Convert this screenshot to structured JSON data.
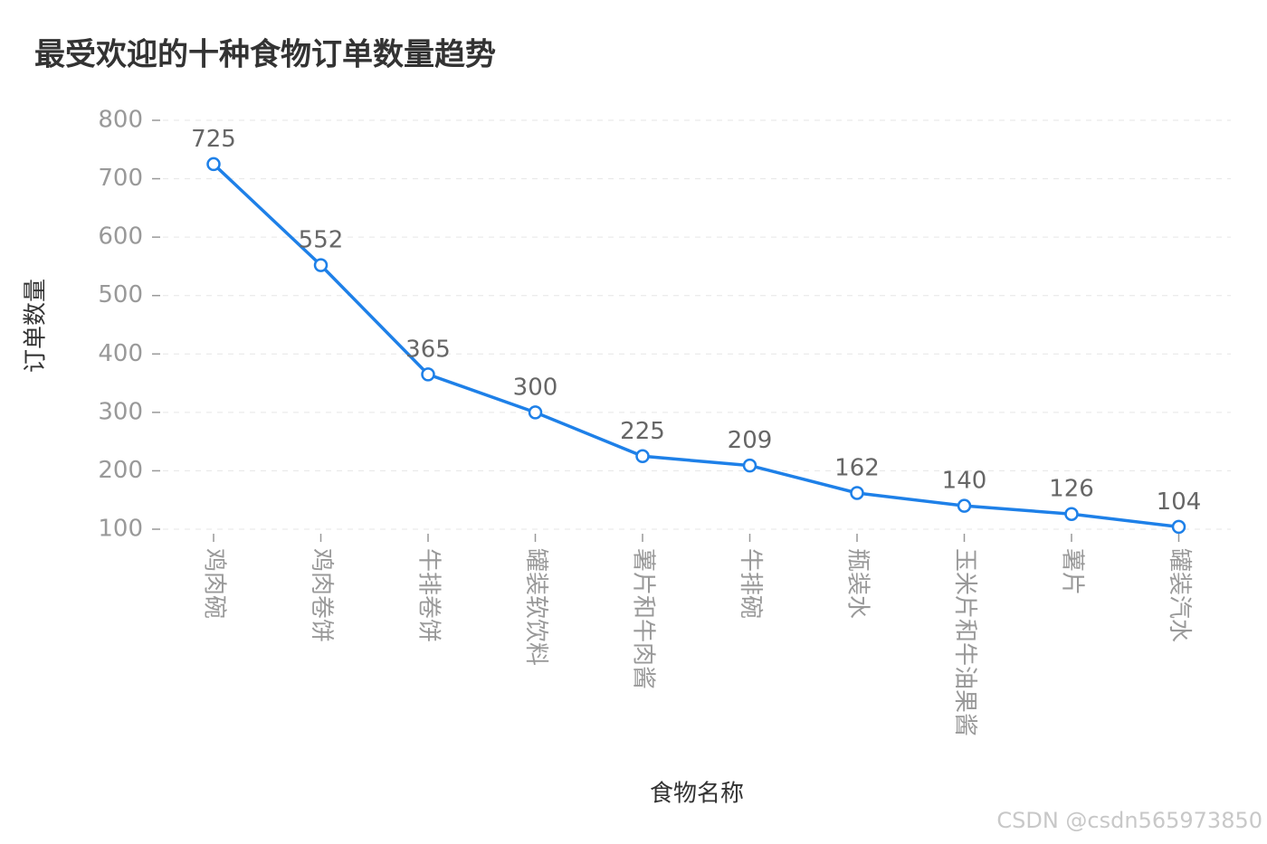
{
  "chart_data": {
    "type": "line",
    "title": "最受欢迎的十种食物订单数量趋势",
    "x_label": "食物名称",
    "y_label": "订单数量",
    "categories": [
      "鸡肉碗",
      "鸡肉卷饼",
      "牛排卷饼",
      "罐装软饮料",
      "薯片和牛肉酱",
      "牛排碗",
      "瓶装水",
      "玉米片和牛油果酱",
      "薯片",
      "罐装汽水"
    ],
    "series": [
      {
        "name": "订单数量",
        "color": "#1e80e8",
        "values": [
          725,
          552,
          365,
          300,
          225,
          209,
          162,
          140,
          126,
          104
        ]
      }
    ],
    "ylim": [
      100,
      800
    ],
    "yticks": [
      100,
      200,
      300,
      400,
      500,
      600,
      700,
      800
    ],
    "grid": true,
    "watermark": "CSDN @csdn565973850"
  }
}
